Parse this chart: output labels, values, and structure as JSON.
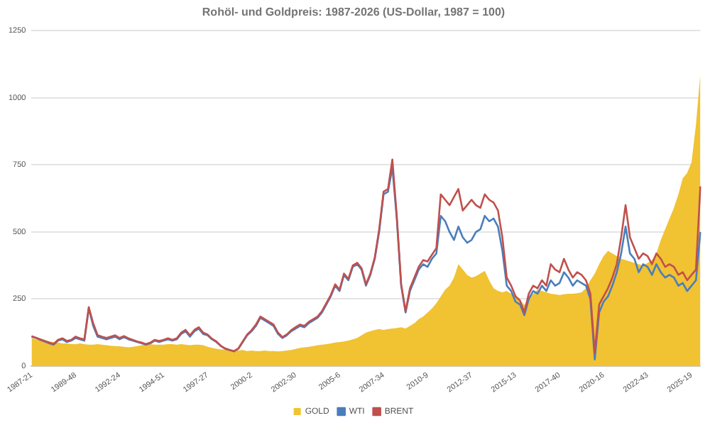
{
  "chart_data": {
    "type": "line",
    "title": "Rohöl- und Goldpreis: 1987-2026 (US-Dollar, 1987 = 100)",
    "categories": [
      "1987-21",
      null,
      null,
      null,
      null,
      null,
      null,
      null,
      null,
      null,
      "1989-48",
      null,
      null,
      null,
      null,
      null,
      null,
      null,
      null,
      null,
      "1992-24",
      null,
      null,
      null,
      null,
      null,
      null,
      null,
      null,
      null,
      "1994-51",
      null,
      null,
      null,
      null,
      null,
      null,
      null,
      null,
      null,
      "1997-27",
      null,
      null,
      null,
      null,
      null,
      null,
      null,
      null,
      null,
      "2000-2",
      null,
      null,
      null,
      null,
      null,
      null,
      null,
      null,
      null,
      "2002-30",
      null,
      null,
      null,
      null,
      null,
      null,
      null,
      null,
      null,
      "2005-6",
      null,
      null,
      null,
      null,
      null,
      null,
      null,
      null,
      null,
      "2007-34",
      null,
      null,
      null,
      null,
      null,
      null,
      null,
      null,
      null,
      "2010-9",
      null,
      null,
      null,
      null,
      null,
      null,
      null,
      null,
      null,
      "2012-37",
      null,
      null,
      null,
      null,
      null,
      null,
      null,
      null,
      null,
      "2015-13",
      null,
      null,
      null,
      null,
      null,
      null,
      null,
      null,
      null,
      "2017-40",
      null,
      null,
      null,
      null,
      null,
      null,
      null,
      null,
      null,
      "2020-16",
      null,
      null,
      null,
      null,
      null,
      null,
      null,
      null,
      null,
      "2022-43",
      null,
      null,
      null,
      null,
      null,
      null,
      null,
      null,
      null,
      "2025-19",
      null,
      null
    ],
    "series": [
      {
        "name": "GOLD",
        "type": "area",
        "color": "#f1c232",
        "values": [
          105,
          100,
          98,
          95,
          92,
          90,
          88,
          85,
          85,
          83,
          82,
          85,
          82,
          80,
          80,
          82,
          80,
          78,
          76,
          75,
          74,
          72,
          70,
          72,
          75,
          78,
          80,
          82,
          80,
          80,
          80,
          82,
          82,
          80,
          82,
          80,
          78,
          80,
          80,
          78,
          72,
          68,
          65,
          62,
          62,
          60,
          60,
          58,
          60,
          56,
          58,
          56,
          56,
          58,
          56,
          56,
          55,
          56,
          58,
          60,
          64,
          68,
          70,
          72,
          75,
          78,
          80,
          82,
          85,
          88,
          90,
          92,
          95,
          100,
          105,
          115,
          125,
          130,
          135,
          138,
          135,
          138,
          140,
          142,
          145,
          140,
          150,
          160,
          175,
          185,
          200,
          215,
          235,
          260,
          285,
          300,
          330,
          380,
          360,
          340,
          330,
          335,
          345,
          355,
          320,
          290,
          280,
          275,
          280,
          270,
          265,
          245,
          228,
          250,
          270,
          285,
          280,
          275,
          270,
          268,
          265,
          268,
          270,
          270,
          272,
          275,
          290,
          320,
          345,
          380,
          410,
          430,
          420,
          410,
          400,
          395,
          390,
          385,
          380,
          375,
          385,
          395,
          420,
          470,
          510,
          550,
          590,
          640,
          700,
          720,
          760,
          900,
          1090
        ]
      },
      {
        "name": "WTI",
        "color": "#4a7ebb",
        "values": [
          110,
          105,
          98,
          92,
          85,
          80,
          95,
          100,
          90,
          95,
          105,
          100,
          95,
          215,
          150,
          110,
          105,
          100,
          105,
          110,
          100,
          108,
          100,
          95,
          90,
          85,
          80,
          85,
          95,
          90,
          95,
          100,
          95,
          100,
          120,
          130,
          110,
          130,
          140,
          120,
          115,
          100,
          90,
          75,
          65,
          60,
          55,
          65,
          90,
          115,
          130,
          150,
          180,
          170,
          160,
          150,
          120,
          105,
          115,
          130,
          140,
          150,
          145,
          160,
          170,
          180,
          200,
          230,
          260,
          300,
          280,
          340,
          320,
          370,
          380,
          360,
          300,
          340,
          400,
          500,
          640,
          650,
          740,
          550,
          300,
          200,
          280,
          320,
          360,
          380,
          370,
          400,
          420,
          560,
          540,
          500,
          470,
          520,
          480,
          460,
          470,
          500,
          510,
          560,
          540,
          550,
          520,
          430,
          300,
          280,
          240,
          230,
          190,
          250,
          280,
          270,
          300,
          280,
          320,
          300,
          310,
          350,
          330,
          300,
          320,
          310,
          300,
          250,
          25,
          200,
          240,
          260,
          300,
          350,
          420,
          520,
          420,
          400,
          350,
          380,
          370,
          340,
          380,
          350,
          330,
          340,
          330,
          300,
          310,
          280,
          300,
          320,
          500
        ]
      },
      {
        "name": "BRENT",
        "color": "#c0504d",
        "values": [
          112,
          106,
          100,
          94,
          88,
          82,
          98,
          104,
          94,
          98,
          110,
          104,
          100,
          220,
          160,
          116,
          110,
          105,
          110,
          115,
          105,
          112,
          104,
          98,
          92,
          88,
          82,
          88,
          98,
          94,
          98,
          104,
          98,
          104,
          125,
          135,
          115,
          135,
          145,
          125,
          118,
          102,
          92,
          76,
          66,
          60,
          56,
          66,
          92,
          118,
          134,
          155,
          185,
          175,
          165,
          155,
          125,
          108,
          118,
          134,
          145,
          155,
          150,
          165,
          175,
          185,
          205,
          235,
          265,
          305,
          285,
          345,
          325,
          375,
          385,
          365,
          305,
          345,
          405,
          510,
          650,
          660,
          770,
          560,
          305,
          205,
          290,
          330,
          370,
          395,
          390,
          415,
          440,
          640,
          620,
          600,
          630,
          660,
          580,
          600,
          620,
          600,
          590,
          640,
          620,
          610,
          580,
          480,
          330,
          300,
          260,
          245,
          200,
          270,
          300,
          290,
          320,
          300,
          380,
          360,
          350,
          400,
          360,
          330,
          350,
          340,
          320,
          270,
          50,
          230,
          260,
          290,
          330,
          380,
          480,
          600,
          480,
          440,
          400,
          420,
          410,
          380,
          420,
          400,
          370,
          380,
          370,
          340,
          350,
          320,
          340,
          360,
          670
        ]
      }
    ],
    "ylim": [
      0,
      1250
    ],
    "yticks": [
      0,
      250,
      500,
      750,
      1000,
      1250
    ],
    "grid": "y",
    "legend": "bottom",
    "marker": "none"
  }
}
